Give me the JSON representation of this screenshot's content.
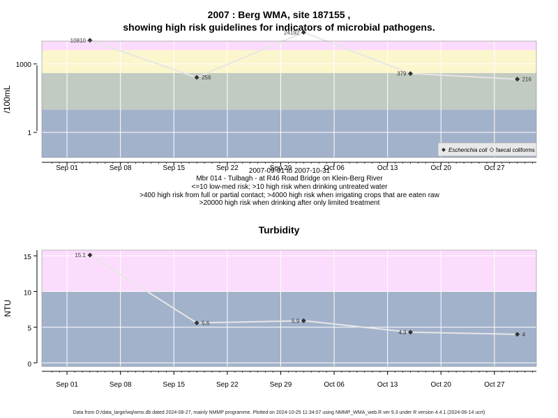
{
  "titles": {
    "main_line1": "2007 : Berg WMA, site 187155 ,",
    "main_line2": "showing high risk guidelines for indicators of microbial pathogens.",
    "turbidity": "Turbidity"
  },
  "captions": [
    "2007-09-01 to 2007-10-31",
    "Mbr 014 - Tulbagh - at R46 Road Bridge on Klein-Berg River",
    "<=10 low-med risk; >10 high risk when drinking untreated water",
    ">400 high risk from full or partial contact; >4000 high risk when irrigating crops that are eaten raw",
    ">20000 high risk when drinking after only limited treatment"
  ],
  "footer": "Data from D:/data_large/wq/wms.db dated 2024-08-27, mainly NMMP programme. Plotted on 2024-10-25 11:34:07 using NMMP_WMA_web.R ver 9.3 under R version 4.4.1 (2024-06-14 ucrt)",
  "colors": {
    "band_blue": "#a3b2cb",
    "band_sage": "#c2cbc1",
    "band_yellow": "#fbf6cc",
    "band_pink": "#fcdcfc",
    "band_red": "#f6b0c4",
    "line": "#e6e6e6",
    "grid": "#ffffff",
    "point": "#333333"
  },
  "chart_data": [
    {
      "type": "line",
      "title": "2007 : Berg WMA, site 187155 , showing high risk guidelines for indicators of microbial pathogens.",
      "ylabel": "/100mL",
      "xlabel": "",
      "y_scale": "log",
      "ylim": [
        0.08,
        10000
      ],
      "x_ticks": [
        "Sep 01",
        "Sep 08",
        "Sep 15",
        "Sep 22",
        "Sep 29",
        "Oct 06",
        "Oct 13",
        "Oct 20",
        "Oct 27"
      ],
      "y_ticks": [
        1,
        1000
      ],
      "bands": [
        {
          "from": 0.08,
          "to": 10,
          "color": "band_blue"
        },
        {
          "from": 10,
          "to": 400,
          "color": "band_sage"
        },
        {
          "from": 400,
          "to": 4000,
          "color": "band_yellow"
        },
        {
          "from": 4000,
          "to": 20000,
          "color": "band_pink"
        },
        {
          "from": 20000,
          "to": 30000,
          "color": "band_red"
        }
      ],
      "series": [
        {
          "name": "Escherichia coli",
          "points": [
            {
              "x": "2007-09-04",
              "y": 10810,
              "label": "10810"
            },
            {
              "x": "2007-09-18",
              "y": 256,
              "label": "256"
            },
            {
              "x": "2007-10-02",
              "y": 24192,
              "label": "24192"
            },
            {
              "x": "2007-10-16",
              "y": 379,
              "label": "379"
            },
            {
              "x": "2007-10-30",
              "y": 216,
              "label": "216"
            }
          ]
        }
      ],
      "legend": {
        "position": "bottom-right",
        "entries": [
          "Escherichia coli",
          "faecal coliforms"
        ]
      }
    },
    {
      "type": "line",
      "title": "Turbidity",
      "ylabel": "NTU",
      "xlabel": "",
      "y_scale": "linear",
      "ylim": [
        -0.5,
        15.8
      ],
      "x_ticks": [
        "Sep 01",
        "Sep 08",
        "Sep 15",
        "Sep 22",
        "Sep 29",
        "Oct 06",
        "Oct 13",
        "Oct 20",
        "Oct 27"
      ],
      "y_ticks": [
        0,
        5,
        10,
        15
      ],
      "bands": [
        {
          "from": -0.5,
          "to": 10,
          "color": "band_blue"
        },
        {
          "from": 10,
          "to": 15.8,
          "color": "band_pink"
        }
      ],
      "series": [
        {
          "name": "",
          "points": [
            {
              "x": "2007-09-04",
              "y": 15.1,
              "label": "15.1"
            },
            {
              "x": "2007-09-18",
              "y": 5.6,
              "label": "5.6"
            },
            {
              "x": "2007-10-02",
              "y": 5.9,
              "label": "5.9"
            },
            {
              "x": "2007-10-16",
              "y": 4.3,
              "label": "4.3"
            },
            {
              "x": "2007-10-30",
              "y": 4,
              "label": "4"
            }
          ]
        }
      ]
    }
  ]
}
